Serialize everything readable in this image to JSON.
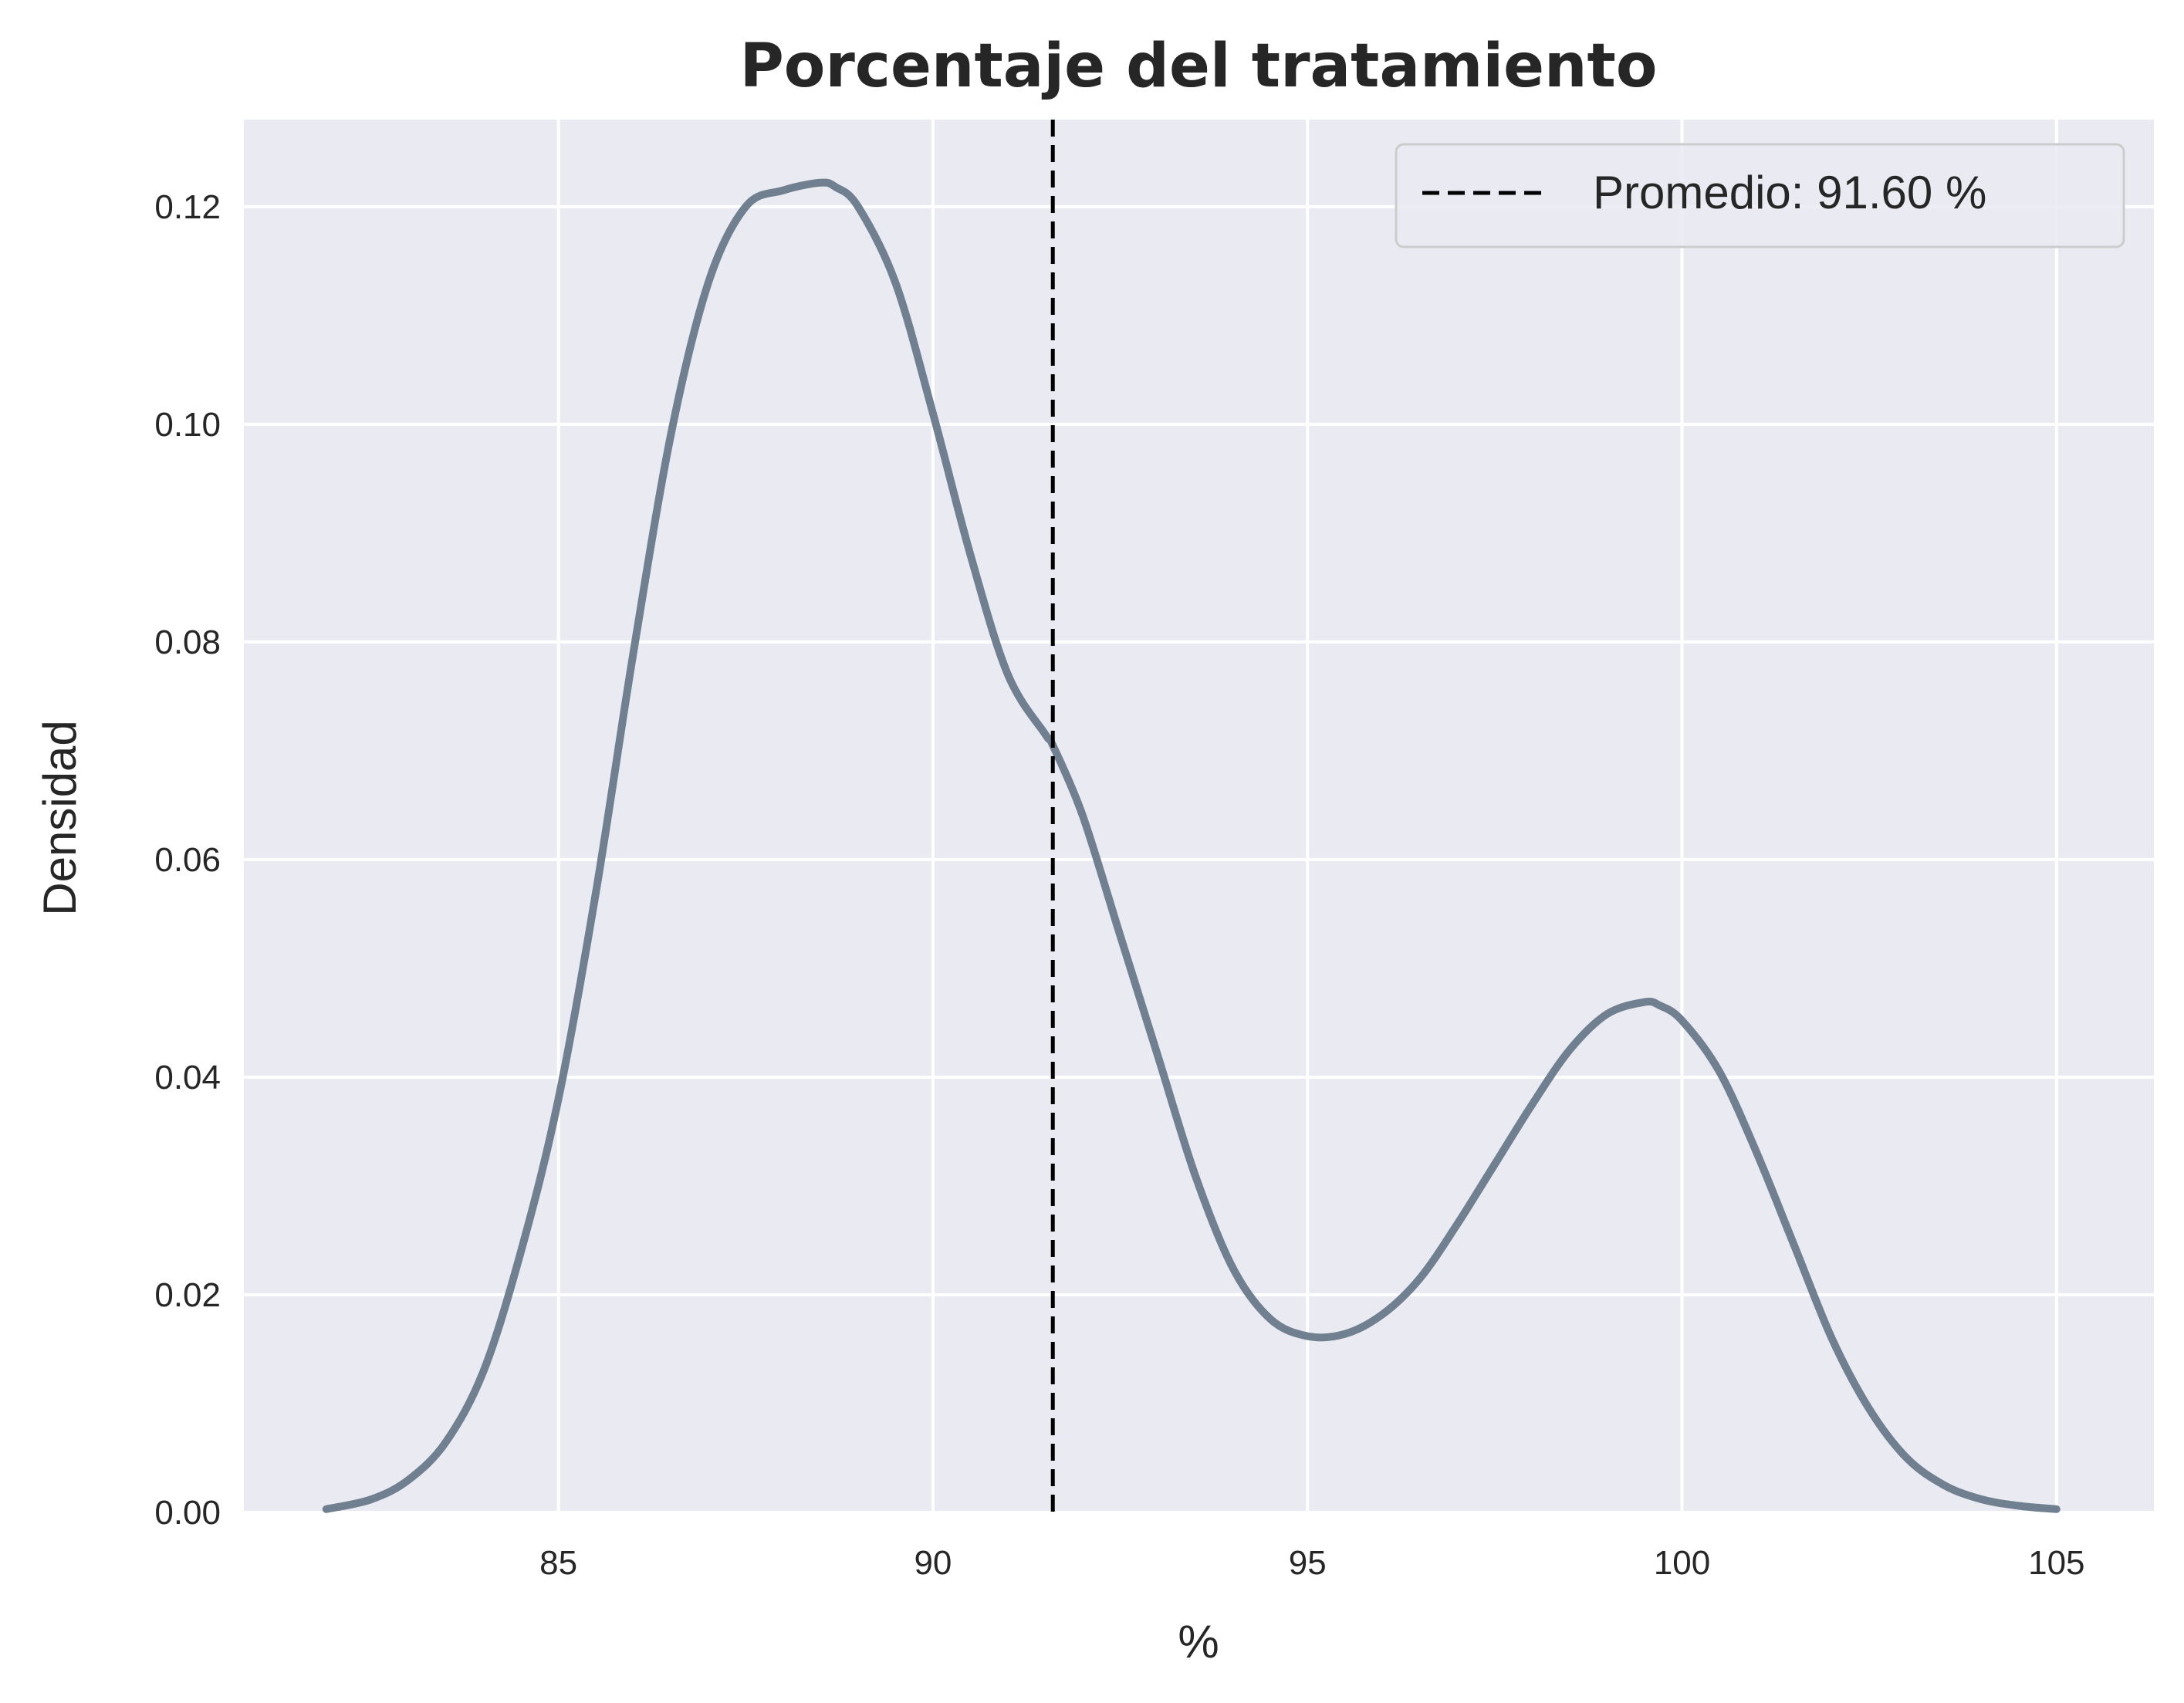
{
  "chart_data": {
    "type": "line",
    "title": "Porcentaje del tratamiento",
    "xlabel": "%",
    "ylabel": "Densidad",
    "xlim": [
      80.8,
      106.3
    ],
    "ylim": [
      0,
      0.128
    ],
    "xticks": [
      85,
      90,
      95,
      100,
      105
    ],
    "xtick_labels": [
      "85",
      "90",
      "95",
      "100",
      "105"
    ],
    "yticks": [
      0,
      0.02,
      0.04,
      0.06,
      0.08,
      0.1,
      0.12
    ],
    "ytick_labels": [
      "0.00",
      "0.02",
      "0.04",
      "0.06",
      "0.08",
      "0.10",
      "0.12"
    ],
    "grid": true,
    "legend_position": "top-right",
    "series": [
      {
        "color": "#708090",
        "x": [
          81.9,
          82.5,
          83.0,
          83.5,
          84.0,
          84.5,
          85.0,
          85.5,
          86.0,
          86.5,
          87.0,
          87.5,
          88.0,
          88.5,
          88.7,
          89.0,
          89.5,
          90.0,
          90.5,
          91.0,
          91.5,
          91.6,
          92.0,
          92.5,
          93.0,
          93.5,
          94.0,
          94.5,
          95.0,
          95.5,
          96.0,
          96.5,
          97.0,
          97.5,
          98.0,
          98.5,
          99.0,
          99.5,
          99.7,
          100.0,
          100.5,
          101.0,
          101.5,
          102.0,
          102.5,
          103.0,
          103.5,
          104.0,
          104.5,
          105.0
        ],
        "y": [
          0.0003,
          0.0012,
          0.003,
          0.0065,
          0.013,
          0.024,
          0.038,
          0.057,
          0.079,
          0.099,
          0.113,
          0.12,
          0.1215,
          0.1222,
          0.1218,
          0.12,
          0.113,
          0.101,
          0.088,
          0.077,
          0.0715,
          0.0705,
          0.064,
          0.053,
          0.042,
          0.031,
          0.0225,
          0.0178,
          0.0162,
          0.0164,
          0.0182,
          0.0215,
          0.0265,
          0.032,
          0.0375,
          0.0425,
          0.0458,
          0.0469,
          0.0466,
          0.0452,
          0.0405,
          0.033,
          0.0245,
          0.016,
          0.0095,
          0.005,
          0.0025,
          0.0012,
          0.0006,
          0.0003
        ]
      }
    ],
    "vline": {
      "x": 91.6,
      "color": "#000000",
      "style": "dashed",
      "label": "Promedio: 91.60 %"
    },
    "colors": {
      "plot_background": "#eaeaf2",
      "grid": "#ffffff",
      "curve": "#708090"
    }
  }
}
